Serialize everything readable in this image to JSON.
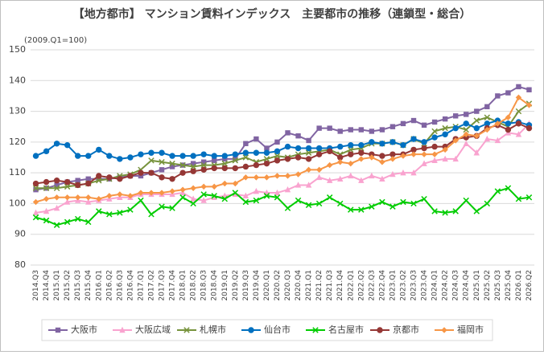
{
  "chart_data": {
    "type": "line",
    "title": "【地方都市】 マンション賃料インデックス　主要都市の推移（連鎖型・総合）",
    "subtitle": "(2009.Q1=100)",
    "categories": [
      "2014.Q3",
      "2014.Q4",
      "2015.Q1",
      "2015.Q2",
      "2015.Q3",
      "2015.Q4",
      "2016.Q1",
      "2016.Q2",
      "2016.Q3",
      "2016.Q4",
      "2017.Q1",
      "2017.Q2",
      "2017.Q3",
      "2017.Q4",
      "2018.Q1",
      "2018.Q2",
      "2018.Q3",
      "2018.Q4",
      "2019.Q1",
      "2019.Q2",
      "2019.Q3",
      "2019.Q4",
      "2020.Q1",
      "2020.Q2",
      "2020.Q3",
      "2020.Q4",
      "2021.Q1",
      "2021.Q2",
      "2021.Q3",
      "2021.Q4",
      "2022.Q1",
      "2022.Q2",
      "2022.Q3",
      "2022.Q4",
      "2023.Q1",
      "2023.Q2",
      "2023.Q3",
      "2023.Q4",
      "2024.Q1",
      "2024.Q2",
      "2024.Q3",
      "2024.Q4",
      "2025.Q1",
      "2025.Q2",
      "2025.Q3",
      "2025.Q4",
      "2026.Q1",
      "2026.Q2"
    ],
    "series": [
      {
        "name": "大阪市",
        "color": "#8064a2",
        "marker": "square",
        "values": [
          104.5,
          105,
          106,
          107,
          107.5,
          108,
          108,
          108,
          108.5,
          109,
          109,
          110,
          111,
          112,
          112.5,
          113,
          113.5,
          114,
          114.5,
          114.5,
          119.5,
          121,
          118,
          120,
          123,
          122,
          120.5,
          124.5,
          124.5,
          123.5,
          124,
          124,
          123.5,
          124,
          125,
          126,
          127,
          125.5,
          126.5,
          127.5,
          128.5,
          129,
          130,
          131.5,
          135,
          136,
          138,
          137
        ]
      },
      {
        "name": "大阪広域",
        "color": "#f9a3cf",
        "marker": "triangle",
        "values": [
          97,
          97.5,
          98.5,
          100.5,
          101,
          100.5,
          101,
          101.5,
          102,
          102,
          103,
          103,
          103,
          103,
          103.5,
          101.5,
          101,
          102,
          102.5,
          103,
          102.5,
          104,
          103.5,
          103.5,
          104.5,
          106,
          106,
          108.5,
          107.5,
          108,
          109,
          107.5,
          109,
          108,
          109.5,
          110,
          110,
          113,
          114,
          114.5,
          114.5,
          119.5,
          116.5,
          121,
          120.5,
          123,
          122.5,
          126
        ]
      },
      {
        "name": "札幌市",
        "color": "#77933c",
        "marker": "x",
        "values": [
          105,
          105,
          105,
          105.5,
          106,
          106.5,
          107.5,
          108,
          109,
          109.5,
          111,
          114,
          113.5,
          113,
          112.5,
          112,
          112.5,
          112.5,
          113,
          114,
          115,
          113.5,
          114.5,
          115.5,
          115,
          116,
          116.5,
          117,
          117.5,
          116,
          117.5,
          118,
          119.5,
          119.5,
          120,
          119,
          121,
          119.5,
          123.5,
          124.5,
          125,
          124,
          127,
          128,
          126.5,
          125,
          130,
          132.5
        ]
      },
      {
        "name": "仙台市",
        "color": "#0070c0",
        "marker": "circle",
        "values": [
          115.5,
          117,
          119.5,
          119,
          115.5,
          115.5,
          117.5,
          115.5,
          114.5,
          115,
          116,
          116.5,
          116.5,
          115.5,
          115.5,
          115.5,
          116,
          115.5,
          115.5,
          116,
          116.5,
          116.5,
          116.5,
          117,
          118.5,
          118,
          118,
          118,
          118,
          118.5,
          119,
          119,
          120,
          119.5,
          120,
          119,
          121,
          120,
          121.5,
          122.5,
          124.5,
          126,
          124.5,
          126,
          127,
          126,
          126.5,
          125.5
        ]
      },
      {
        "name": "名古屋市",
        "color": "#00cc00",
        "marker": "x",
        "values": [
          95.5,
          94.5,
          93,
          94,
          95,
          94,
          97.5,
          96.5,
          97,
          98,
          101,
          96.5,
          99,
          98.5,
          102,
          100,
          103,
          102.5,
          101.5,
          103.5,
          100.5,
          101,
          102.5,
          102,
          98.5,
          101,
          99.5,
          100,
          102,
          100,
          98,
          98,
          99,
          100.5,
          99,
          100.5,
          100,
          101.5,
          97.5,
          97,
          97.5,
          101,
          97.5,
          100,
          104,
          105,
          101.5,
          102
        ]
      },
      {
        "name": "京都市",
        "color": "#953735",
        "marker": "circle",
        "values": [
          106.5,
          107,
          107.5,
          107,
          106,
          106.5,
          109,
          108.5,
          108,
          109,
          110,
          110,
          108.5,
          108,
          110,
          110.5,
          111,
          111.5,
          111.5,
          111.5,
          112,
          112.5,
          113,
          114,
          114.5,
          115,
          114.5,
          116,
          117,
          115,
          116,
          116.5,
          116,
          115.5,
          116,
          116,
          117.5,
          118,
          118.5,
          118.5,
          121,
          121.5,
          122,
          124.5,
          125.5,
          124,
          126,
          124.5
        ]
      },
      {
        "name": "福岡市",
        "color": "#f79646",
        "marker": "diamond",
        "values": [
          100.5,
          101.5,
          102,
          102,
          102,
          102,
          101.5,
          102.5,
          103,
          102.5,
          103.5,
          103.5,
          103.5,
          104,
          104.5,
          105,
          105.5,
          105.5,
          106.5,
          106.5,
          108.5,
          108.5,
          108.5,
          109,
          109,
          109.5,
          111,
          111,
          112.5,
          113.5,
          113,
          114.5,
          115,
          113.5,
          114.5,
          115.5,
          116,
          116,
          116,
          117.5,
          120.5,
          122.5,
          122,
          124,
          126,
          128,
          134.5,
          132
        ]
      }
    ],
    "ylim": [
      80,
      150
    ],
    "yticks": [
      80,
      90,
      100,
      110,
      120,
      130,
      140,
      150
    ],
    "grid": true,
    "legend": "bottom"
  }
}
